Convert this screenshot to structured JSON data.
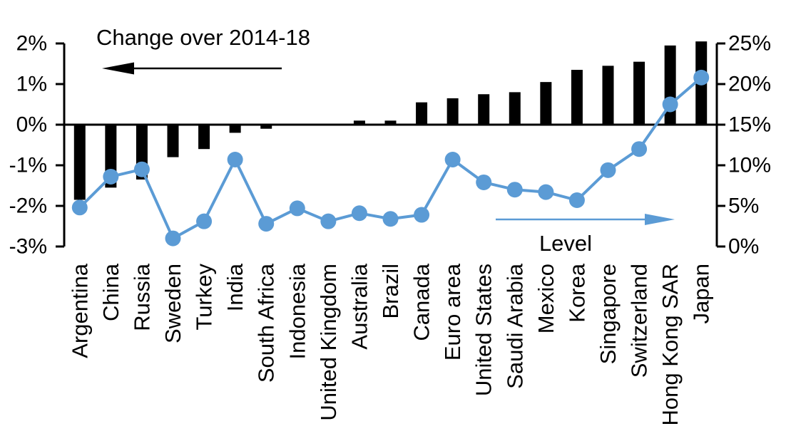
{
  "chart_data": {
    "type": "combo-bar-line",
    "categories": [
      "Argentina",
      "China",
      "Russia",
      "Sweden",
      "Turkey",
      "India",
      "South Africa",
      "Indonesia",
      "United Kingdom",
      "Australia",
      "Brazil",
      "Canada",
      "Euro area",
      "United States",
      "Saudi Arabia",
      "Mexico",
      "Korea",
      "Singapore",
      "Switzerland",
      "Hong Kong SAR",
      "Japan"
    ],
    "series": [
      {
        "name": "Change over 2014-18",
        "type": "bar",
        "axis": "left",
        "color": "#000000",
        "values": [
          -1.85,
          -1.55,
          -1.35,
          -0.8,
          -0.6,
          -0.2,
          -0.1,
          0,
          0,
          0.1,
          0.1,
          0.55,
          0.65,
          0.75,
          0.8,
          1.05,
          1.35,
          1.45,
          1.55,
          1.95,
          2.05
        ]
      },
      {
        "name": "Level",
        "type": "line",
        "axis": "right",
        "color": "#5b9bd5",
        "values": [
          4.8,
          8.6,
          9.5,
          1.0,
          3.1,
          10.7,
          2.8,
          4.7,
          3.1,
          4.1,
          3.4,
          3.9,
          10.7,
          7.9,
          7.0,
          6.7,
          5.7,
          9.4,
          12.0,
          17.5,
          20.8
        ]
      }
    ],
    "left_axis": {
      "min": -3,
      "max": 2,
      "step": 1,
      "unit": "%",
      "tick_labels": [
        "2%",
        "1%",
        "0%",
        "-1%",
        "-2%",
        "-3%"
      ]
    },
    "right_axis": {
      "min": 0,
      "max": 25,
      "step": 5,
      "unit": "%",
      "tick_labels": [
        "25%",
        "20%",
        "15%",
        "10%",
        "5%",
        "0%"
      ]
    },
    "annotations": [
      {
        "text": "Change over 2014-18",
        "arrow_direction": "left",
        "arrow_color": "#000000",
        "text_color": "#000000"
      },
      {
        "text": "Level",
        "arrow_direction": "right",
        "arrow_color": "#5b9bd5",
        "text_color": "#000000"
      }
    ],
    "grid": false,
    "legend_position": "in-plot-annotations"
  }
}
